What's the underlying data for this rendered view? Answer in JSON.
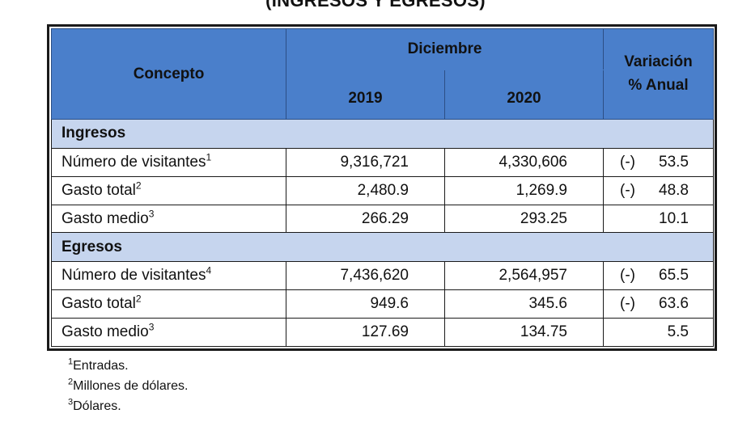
{
  "title": "(INGRESOS Y EGRESOS)",
  "header": {
    "concept": "Concepto",
    "month": "Diciembre",
    "year1": "2019",
    "year2": "2020",
    "variation_line1": "Variación",
    "variation_line2": "% Anual"
  },
  "sections": [
    {
      "name": "Ingresos",
      "rows": [
        {
          "label": "Número de visitantes",
          "sup": "1",
          "v2019": "9,316,721",
          "v2020": "4,330,606",
          "var_sign": "(-)",
          "var_value": "53.5"
        },
        {
          "label": "Gasto total",
          "sup": "2",
          "v2019": "2,480.9",
          "v2020": "1,269.9",
          "var_sign": "(-)",
          "var_value": "48.8"
        },
        {
          "label": "Gasto medio",
          "sup": "3",
          "v2019": "266.29",
          "v2020": "293.25",
          "var_sign": "",
          "var_value": "10.1"
        }
      ]
    },
    {
      "name": "Egresos",
      "rows": [
        {
          "label": "Número de visitantes",
          "sup": "4",
          "v2019": "7,436,620",
          "v2020": "2,564,957",
          "var_sign": "(-)",
          "var_value": "65.5"
        },
        {
          "label": "Gasto total",
          "sup": "2",
          "v2019": "949.6",
          "v2020": "345.6",
          "var_sign": "(-)",
          "var_value": "63.6"
        },
        {
          "label": "Gasto medio",
          "sup": "3",
          "v2019": "127.69",
          "v2020": "134.75",
          "var_sign": "",
          "var_value": "5.5"
        }
      ]
    }
  ],
  "notes": [
    {
      "sup": "1",
      "text": "Entradas."
    },
    {
      "sup": "2",
      "text": "Millones de dólares."
    },
    {
      "sup": "3",
      "text": "Dólares."
    }
  ]
}
